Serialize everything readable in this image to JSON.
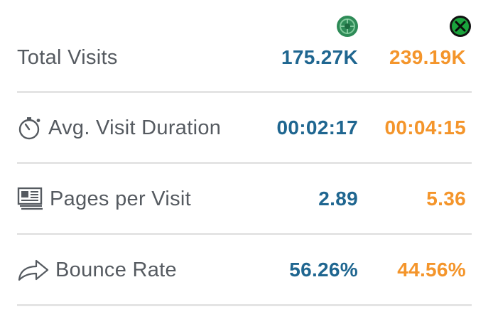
{
  "sites": [
    {
      "icon": "green-globe-logo-icon",
      "color": "#1f6690"
    },
    {
      "icon": "green-x-logo-icon",
      "color": "#f4952b"
    }
  ],
  "metrics": [
    {
      "label": "Total Visits",
      "icon": null,
      "values": [
        "175.27K",
        "239.19K"
      ]
    },
    {
      "label": "Avg. Visit Duration",
      "icon": "stopwatch-icon",
      "values": [
        "00:02:17",
        "00:04:15"
      ]
    },
    {
      "label": "Pages per Visit",
      "icon": "pages-icon",
      "values": [
        "2.89",
        "5.36"
      ]
    },
    {
      "label": "Bounce Rate",
      "icon": "share-arrow-icon",
      "values": [
        "56.26%",
        "44.56%"
      ]
    }
  ]
}
